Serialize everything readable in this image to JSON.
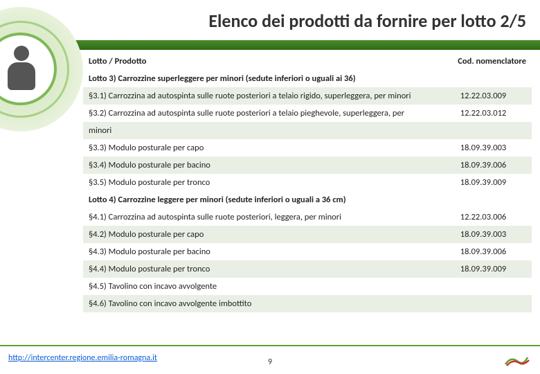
{
  "title": "Elenco dei prodotti da fornire per lotto 2/5",
  "columns": {
    "c1": "Lotto / Prodotto",
    "c2": "Cod. nomenclatore"
  },
  "rows": [
    {
      "type": "section",
      "label": "Lotto 3) Carrozzine superleggere per minori (sedute inferiori o uguali ai 36)",
      "zebra": false
    },
    {
      "type": "item",
      "label": "§3.1) Carrozzina ad autospinta sulle ruote posteriori a telaio rigido, superleggera, per minori",
      "code": "12.22.03.009",
      "zebra": true
    },
    {
      "type": "item",
      "label": "§3.2) Carrozzina ad autospinta sulle ruote posteriori a telaio pieghevole, superleggera, per",
      "code": "12.22.03.012",
      "zebra": false
    },
    {
      "type": "cont",
      "label": "minori",
      "zebra": true
    },
    {
      "type": "item",
      "label": "§3.3) Modulo posturale per capo",
      "code": "18.09.39.003",
      "zebra": false
    },
    {
      "type": "item",
      "label": "§3.4) Modulo posturale per bacino",
      "code": "18.09.39.006",
      "zebra": true
    },
    {
      "type": "item",
      "label": "§3.5) Modulo posturale per tronco",
      "code": "18.09.39.009",
      "zebra": false
    },
    {
      "type": "section",
      "label": "Lotto 4) Carrozzine leggere per minori (sedute inferiori o uguali a 36 cm)",
      "zebra": true
    },
    {
      "type": "item",
      "label": "§4.1) Carrozzina ad autospinta sulle ruote posteriori, leggera, per minori",
      "code": "12.22.03.006",
      "zebra": false
    },
    {
      "type": "item",
      "label": "§4.2) Modulo posturale per capo",
      "code": "18.09.39.003",
      "zebra": true
    },
    {
      "type": "item",
      "label": "§4.3) Modulo posturale per bacino",
      "code": "18.09.39.006",
      "zebra": false
    },
    {
      "type": "item",
      "label": "§4.4) Modulo posturale per tronco",
      "code": "18.09.39.009",
      "zebra": true
    },
    {
      "type": "item",
      "label": "§4.5) Tavolino con incavo avvolgente",
      "code": "",
      "zebra": false
    },
    {
      "type": "item",
      "label": "§4.6) Tavolino con incavo avvolgente imbottito",
      "code": "",
      "zebra": true
    }
  ],
  "footer": {
    "url": "http://intercenter.regione.emilia-romagna.it",
    "page": "9"
  },
  "colors": {
    "green_dark": "#2d6b15",
    "green_mid": "#5fa02f",
    "zebra": "#e9efe4",
    "link": "#0b5cd6"
  }
}
